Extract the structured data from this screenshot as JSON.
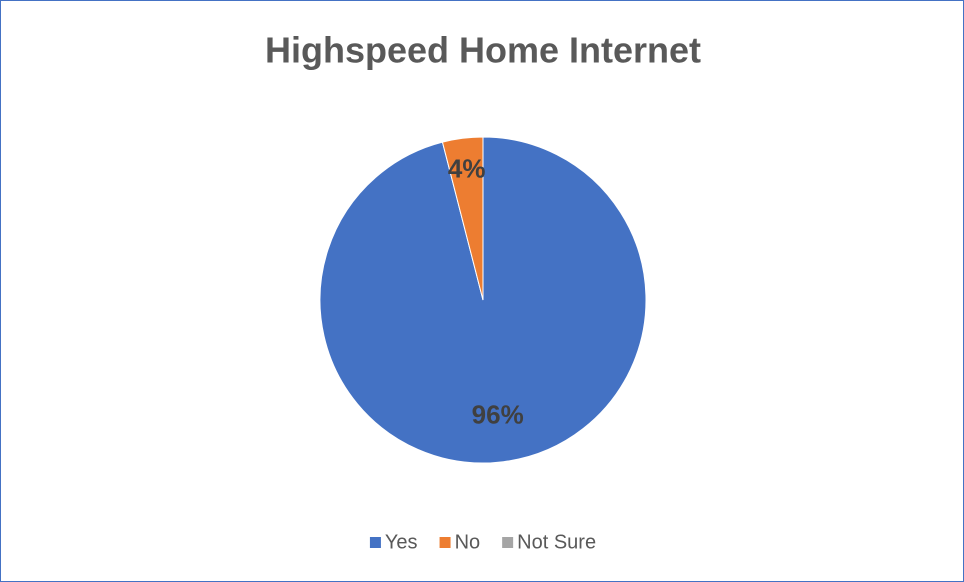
{
  "chart_data": {
    "type": "pie",
    "title": "Highspeed Home Internet",
    "categories": [
      "Yes",
      "No",
      "Not Sure"
    ],
    "values": [
      96,
      4,
      0
    ],
    "value_labels": [
      "96%",
      "4%",
      null
    ],
    "colors": [
      "#4472c4",
      "#ed7d31",
      "#a5a5a5"
    ],
    "legend": "bottom"
  }
}
